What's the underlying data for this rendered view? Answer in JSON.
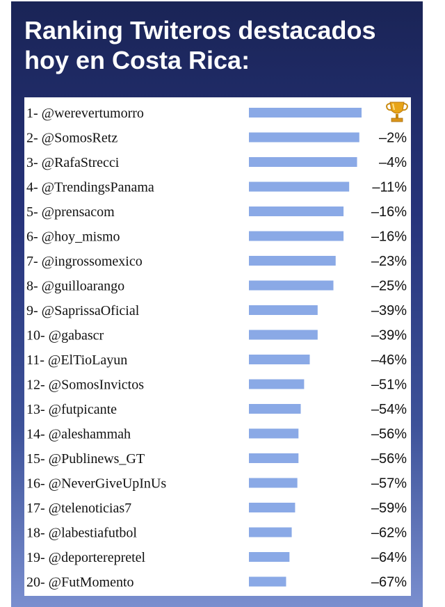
{
  "title": "Ranking Twiteros destacados hoy en Costa Rica:",
  "bar_color": "#8aa9e6",
  "top_icon": "trophy-icon",
  "chart_data": {
    "type": "bar",
    "orientation": "horizontal",
    "title": "Ranking Twiteros destacados hoy en Costa Rica:",
    "xlim": [
      0,
      100
    ],
    "grid": false,
    "categories": [
      "1- @werevertumorro",
      "2- @SomosRetz",
      "3- @RafaStrecci",
      "4- @TrendingsPanama",
      "5- @prensacom",
      "6- @hoy_mismo",
      "7- @ingrossomexico",
      "8- @guilloarango",
      "9- @SaprissaOficial",
      "10- @gabascr",
      "11- @ElTioLayun",
      "12- @SomosInvictos",
      "13- @futpicante",
      "14- @aleshammah",
      "15- @Publinews_GT",
      "16- @NeverGiveUpInUs",
      "17- @telenoticias7",
      "18- @labestiafutbol",
      "19- @deporterepretel",
      "20- @FutMomento"
    ],
    "values": [
      100,
      98,
      96,
      89,
      84,
      84,
      77,
      75,
      61,
      61,
      54,
      49,
      46,
      44,
      44,
      43,
      41,
      38,
      36,
      33
    ],
    "change_labels": [
      "",
      "–2%",
      "–4%",
      "–11%",
      "–16%",
      "–16%",
      "–23%",
      "–25%",
      "–39%",
      "–39%",
      "–46%",
      "–51%",
      "–54%",
      "–56%",
      "–56%",
      "–57%",
      "–59%",
      "–62%",
      "–64%",
      "–67%"
    ]
  }
}
